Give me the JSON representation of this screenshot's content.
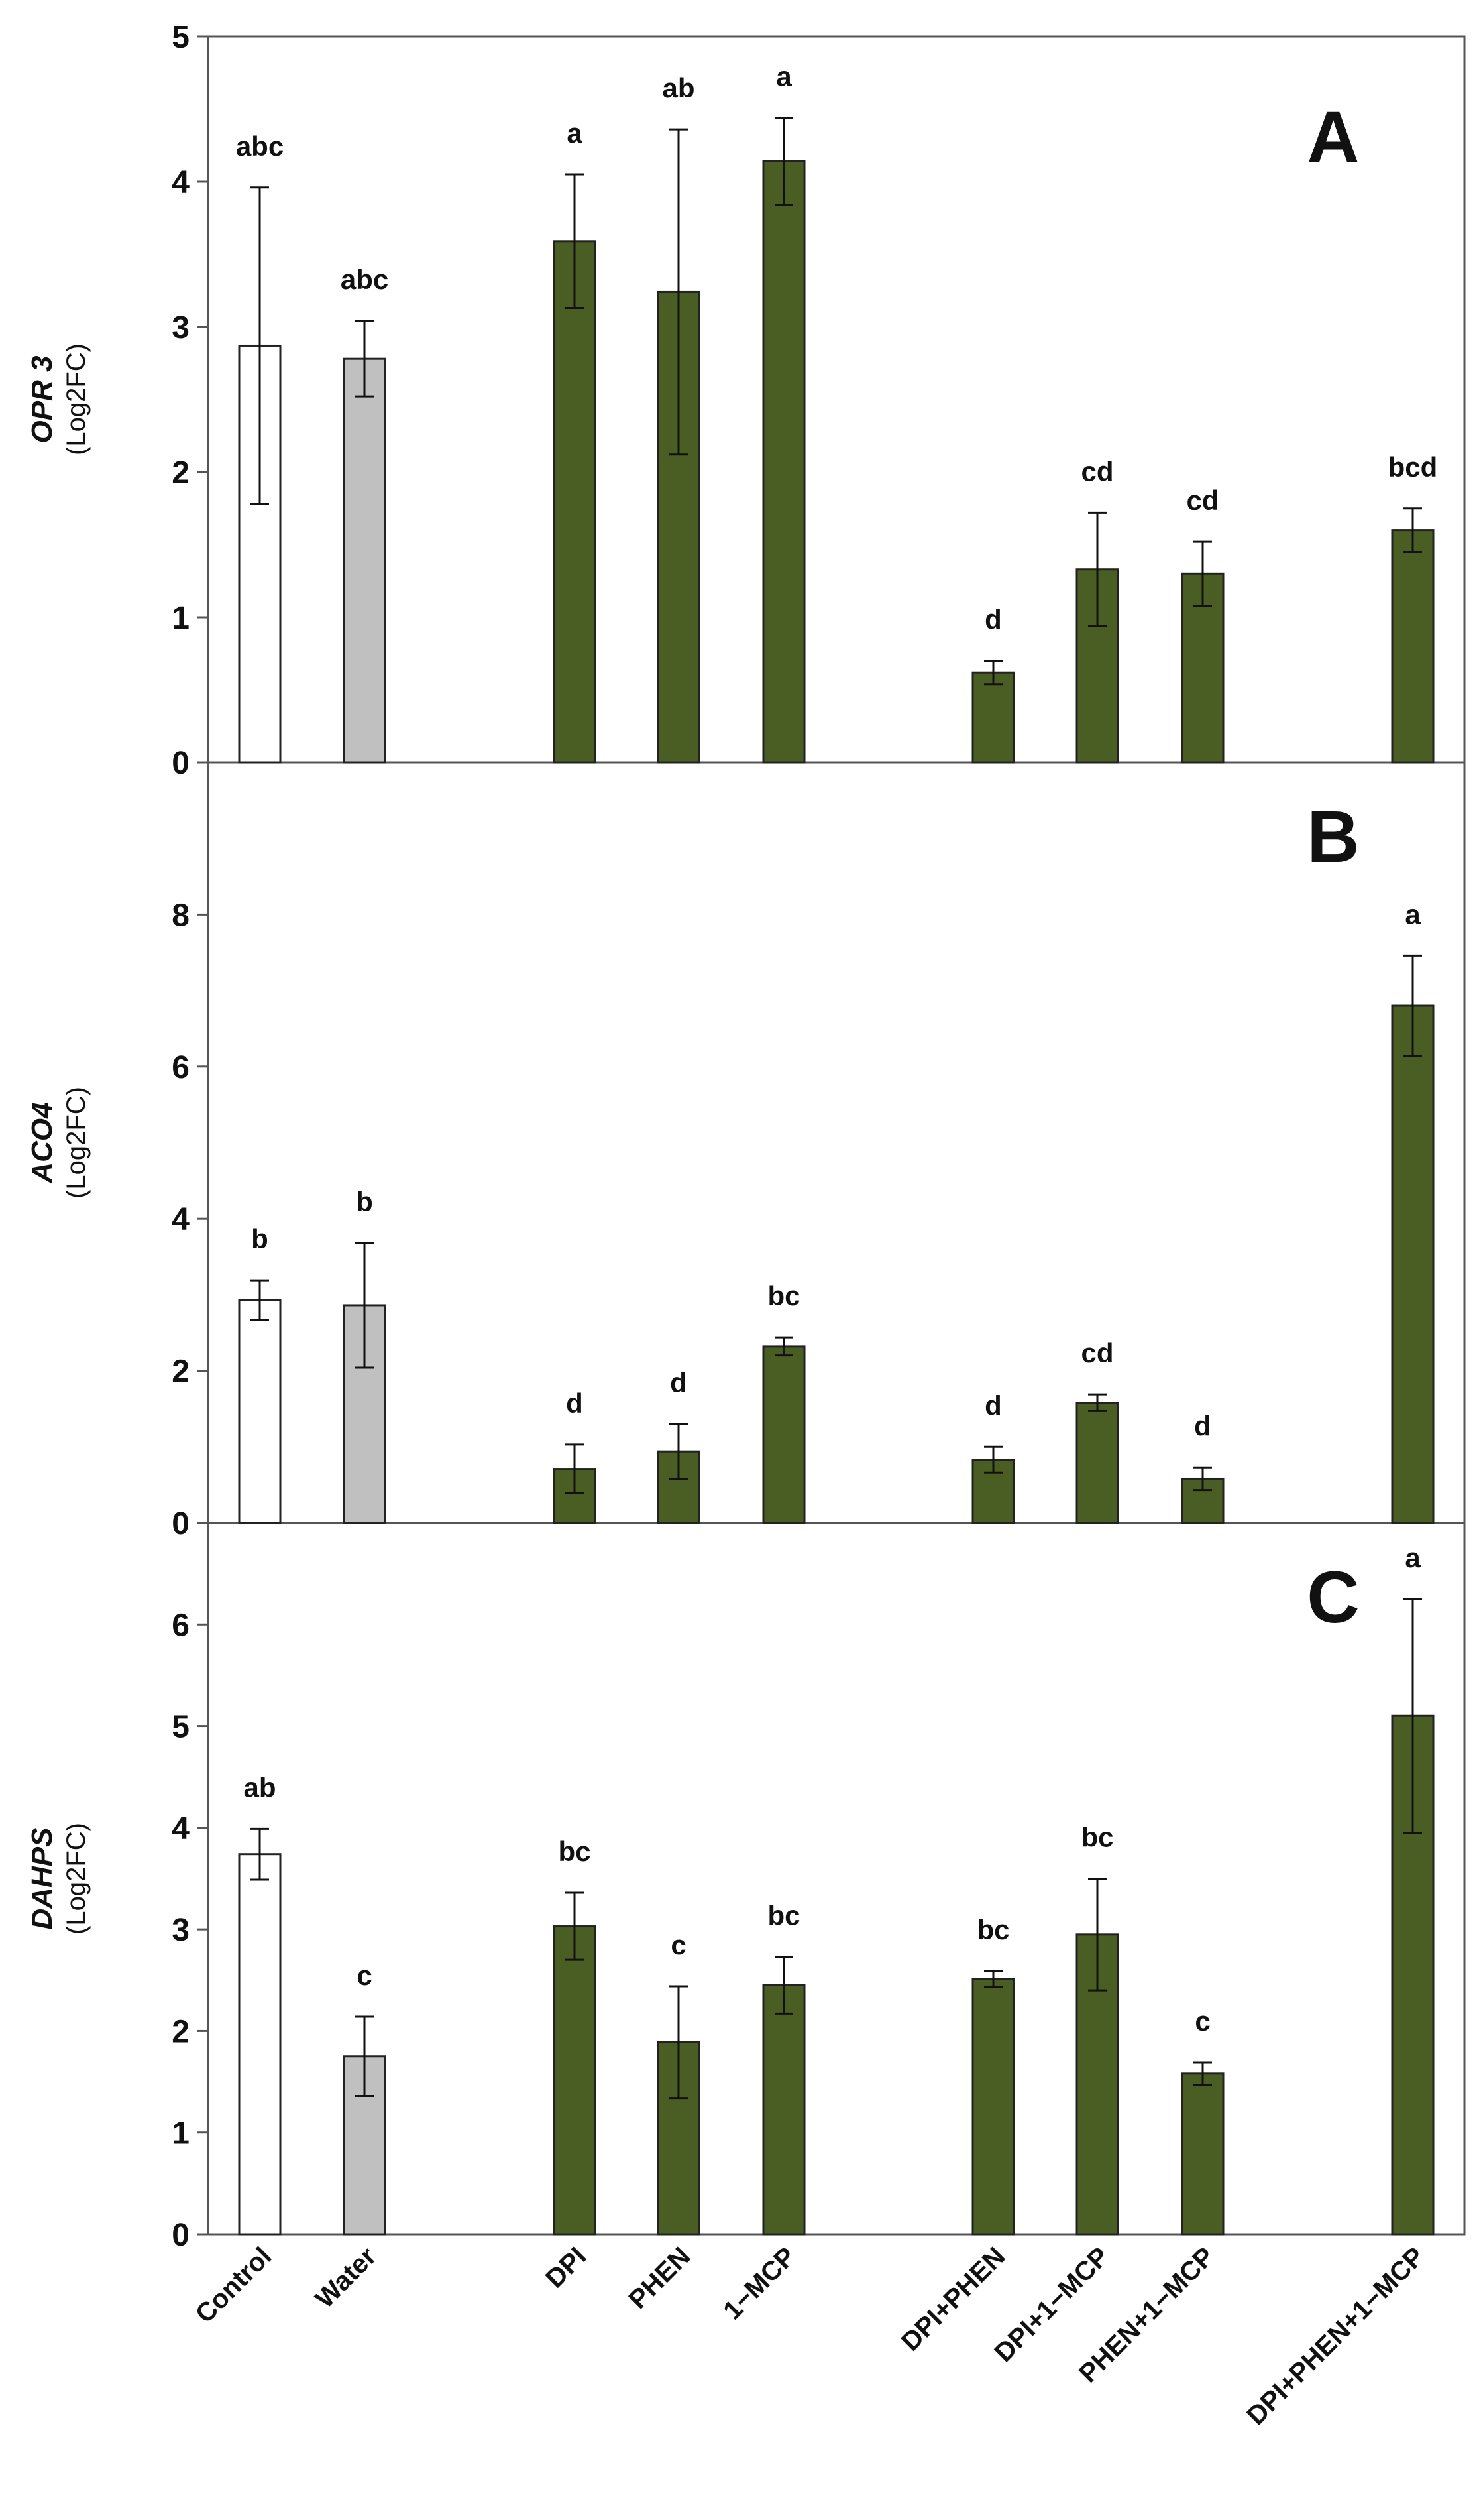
{
  "chart_data": {
    "type": "bar",
    "categories": [
      "Control",
      "Water",
      "DPI",
      "PHEN",
      "1−MCP",
      "DPI+PHEN",
      "DPI+1−MCP",
      "PHEN+1−MCP",
      "DPI+PHEN+1−MCP"
    ],
    "bar_colors": [
      "#ffffff",
      "#c0c0c0",
      "#4a5e23",
      "#4a5e23",
      "#4a5e23",
      "#4a5e23",
      "#4a5e23",
      "#4a5e23",
      "#4a5e23"
    ],
    "panels": [
      {
        "label": "A",
        "gene": "OPR 3",
        "unit": "(Log2FC)",
        "ylim": [
          0,
          5
        ],
        "yticks": [
          0,
          1,
          2,
          3,
          4,
          5
        ],
        "values": [
          2.87,
          2.78,
          3.59,
          3.24,
          4.14,
          0.62,
          1.33,
          1.3,
          1.6
        ],
        "errors": [
          1.09,
          0.26,
          0.46,
          1.12,
          0.3,
          0.08,
          0.39,
          0.22,
          0.15
        ],
        "letters": [
          "abc",
          "abc",
          "a",
          "ab",
          "a",
          "d",
          "cd",
          "cd",
          "bcd"
        ]
      },
      {
        "label": "B",
        "gene": "ACO4",
        "unit": "(Log2FC)",
        "ylim": [
          0,
          10
        ],
        "yticks": [
          0,
          2,
          4,
          6,
          8
        ],
        "values": [
          2.93,
          2.86,
          0.71,
          0.94,
          2.32,
          0.83,
          1.58,
          0.58,
          6.8
        ],
        "errors": [
          0.26,
          0.82,
          0.32,
          0.36,
          0.12,
          0.17,
          0.11,
          0.15,
          0.66
        ],
        "letters": [
          "b",
          "b",
          "d",
          "d",
          "bc",
          "d",
          "cd",
          "d",
          "a"
        ]
      },
      {
        "label": "C",
        "gene": "DAHPS",
        "unit": "(Log2FC)",
        "ylim": [
          0,
          7
        ],
        "yticks": [
          0,
          1,
          2,
          3,
          4,
          5,
          6
        ],
        "values": [
          3.74,
          1.75,
          3.03,
          1.89,
          2.45,
          2.51,
          2.95,
          1.58,
          5.1
        ],
        "errors": [
          0.25,
          0.39,
          0.33,
          0.55,
          0.28,
          0.08,
          0.55,
          0.11,
          1.15
        ],
        "letters": [
          "ab",
          "c",
          "bc",
          "c",
          "bc",
          "bc",
          "bc",
          "c",
          "a"
        ]
      }
    ],
    "xlabel": "",
    "grid": false
  }
}
